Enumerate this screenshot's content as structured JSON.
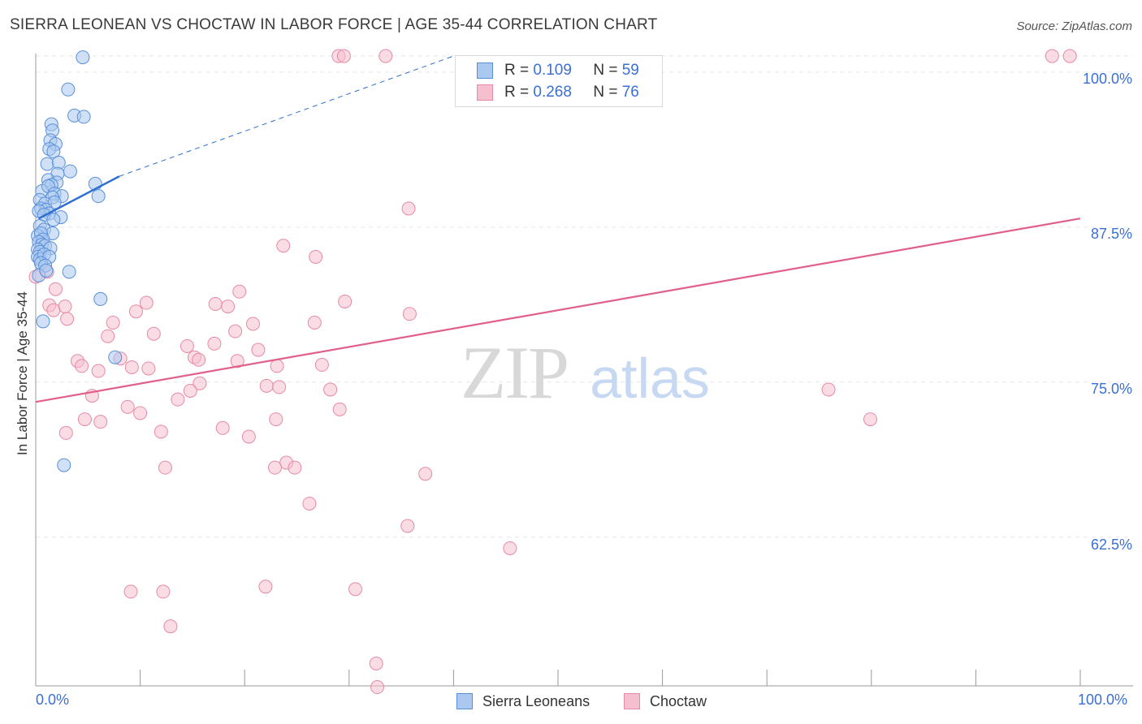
{
  "title": "SIERRA LEONEAN VS CHOCTAW IN LABOR FORCE | AGE 35-44 CORRELATION CHART",
  "source": "Source: ZipAtlas.com",
  "watermark": {
    "zip": "ZIP",
    "atlas": "atlas"
  },
  "legend": {
    "r_label": "R =",
    "n_label": "N =",
    "series": [
      {
        "name": "Sierra Leoneans",
        "r": "0.109",
        "n": "59"
      },
      {
        "name": "Choctaw",
        "r": "0.268",
        "n": "76"
      }
    ]
  },
  "colors": {
    "blue_fill": "#aac8f0",
    "blue_stroke": "#5a8fd8",
    "blue_line": "#2f6fd0",
    "pink_fill": "#f6bfcf",
    "pink_stroke": "#e68aa6",
    "pink_line": "#e0608a",
    "tick_label": "#3b6fd6",
    "grid": "#e6e6e6"
  },
  "chart_data": {
    "type": "scatter",
    "title": "SIERRA LEONEAN VS CHOCTAW IN LABOR FORCE | AGE 35-44 CORRELATION CHART",
    "xlabel": "",
    "ylabel": "In Labor Force | Age 35-44",
    "xlim": [
      0,
      100
    ],
    "ylim": [
      50.5,
      101.5
    ],
    "x_tick_labels": [
      "0.0%",
      "100.0%"
    ],
    "y_ticks": [
      62.5,
      75.0,
      87.5,
      100.0
    ],
    "y_tick_labels": [
      "62.5%",
      "75.0%",
      "87.5%",
      "100.0%"
    ],
    "grid": true,
    "series": [
      {
        "name": "Sierra Leoneans",
        "r": 0.109,
        "n": 59,
        "trend": {
          "x": [
            0.3,
            8.0
          ],
          "y": [
            88.2,
            91.6
          ],
          "dashed_to": [
            40.0,
            101.3
          ]
        },
        "points": [
          [
            4.5,
            101.2
          ],
          [
            3.1,
            98.6
          ],
          [
            3.7,
            96.5
          ],
          [
            4.6,
            96.4
          ],
          [
            1.5,
            95.8
          ],
          [
            1.6,
            95.3
          ],
          [
            1.4,
            94.5
          ],
          [
            1.9,
            94.2
          ],
          [
            1.3,
            93.8
          ],
          [
            1.7,
            93.6
          ],
          [
            1.1,
            92.6
          ],
          [
            2.2,
            92.7
          ],
          [
            2.1,
            91.8
          ],
          [
            3.3,
            92.0
          ],
          [
            1.2,
            91.3
          ],
          [
            2.0,
            91.1
          ],
          [
            1.5,
            90.9
          ],
          [
            5.7,
            91.0
          ],
          [
            0.6,
            90.4
          ],
          [
            1.2,
            90.8
          ],
          [
            1.8,
            90.2
          ],
          [
            2.5,
            90.0
          ],
          [
            6.0,
            90.0
          ],
          [
            0.4,
            89.7
          ],
          [
            1.6,
            89.9
          ],
          [
            0.9,
            89.4
          ],
          [
            1.8,
            89.5
          ],
          [
            0.5,
            89.0
          ],
          [
            1.0,
            88.9
          ],
          [
            1.3,
            88.6
          ],
          [
            0.3,
            88.8
          ],
          [
            0.8,
            88.5
          ],
          [
            2.4,
            88.3
          ],
          [
            1.7,
            88.1
          ],
          [
            0.4,
            87.6
          ],
          [
            0.8,
            87.3
          ],
          [
            1.6,
            87.0
          ],
          [
            0.2,
            86.8
          ],
          [
            0.5,
            87.0
          ],
          [
            0.7,
            86.5
          ],
          [
            0.3,
            86.3
          ],
          [
            0.6,
            86.1
          ],
          [
            0.9,
            86.0
          ],
          [
            0.2,
            85.7
          ],
          [
            0.4,
            85.5
          ],
          [
            1.4,
            85.8
          ],
          [
            0.2,
            85.1
          ],
          [
            0.4,
            84.9
          ],
          [
            0.8,
            85.3
          ],
          [
            1.3,
            85.1
          ],
          [
            0.5,
            84.6
          ],
          [
            0.9,
            84.4
          ],
          [
            3.2,
            83.9
          ],
          [
            0.3,
            83.6
          ],
          [
            6.2,
            81.7
          ],
          [
            0.7,
            79.9
          ],
          [
            7.6,
            77.0
          ],
          [
            2.7,
            68.3
          ],
          [
            1.0,
            84.0
          ]
        ]
      },
      {
        "name": "Choctaw",
        "r": 0.268,
        "n": 76,
        "trend": {
          "x": [
            0.0,
            100.0
          ],
          "y": [
            73.4,
            88.2
          ]
        },
        "points": [
          [
            29.0,
            101.3
          ],
          [
            29.5,
            101.3
          ],
          [
            33.5,
            101.3
          ],
          [
            97.3,
            101.3
          ],
          [
            99.0,
            101.3
          ],
          [
            35.7,
            89.0
          ],
          [
            23.7,
            86.0
          ],
          [
            26.8,
            85.1
          ],
          [
            1.1,
            83.9
          ],
          [
            1.9,
            82.5
          ],
          [
            19.5,
            82.3
          ],
          [
            29.6,
            81.5
          ],
          [
            1.3,
            81.2
          ],
          [
            2.8,
            81.1
          ],
          [
            10.6,
            81.4
          ],
          [
            17.2,
            81.3
          ],
          [
            18.4,
            81.1
          ],
          [
            1.7,
            80.8
          ],
          [
            9.6,
            80.7
          ],
          [
            3.0,
            80.1
          ],
          [
            7.4,
            79.8
          ],
          [
            20.8,
            79.7
          ],
          [
            26.7,
            79.8
          ],
          [
            35.8,
            80.5
          ],
          [
            19.1,
            79.1
          ],
          [
            11.3,
            78.9
          ],
          [
            6.9,
            78.7
          ],
          [
            17.1,
            78.1
          ],
          [
            14.5,
            77.9
          ],
          [
            21.3,
            77.6
          ],
          [
            15.2,
            77.0
          ],
          [
            8.1,
            76.9
          ],
          [
            4.0,
            76.7
          ],
          [
            15.6,
            76.8
          ],
          [
            19.3,
            76.7
          ],
          [
            23.1,
            76.3
          ],
          [
            27.4,
            76.4
          ],
          [
            4.4,
            76.3
          ],
          [
            9.2,
            76.2
          ],
          [
            10.8,
            76.1
          ],
          [
            6.0,
            75.9
          ],
          [
            15.7,
            74.9
          ],
          [
            22.1,
            74.7
          ],
          [
            23.3,
            74.6
          ],
          [
            28.2,
            74.4
          ],
          [
            75.9,
            74.4
          ],
          [
            14.8,
            74.3
          ],
          [
            5.4,
            73.9
          ],
          [
            13.6,
            73.6
          ],
          [
            8.8,
            73.0
          ],
          [
            29.1,
            72.8
          ],
          [
            10.0,
            72.5
          ],
          [
            23.0,
            72.0
          ],
          [
            4.7,
            72.0
          ],
          [
            6.2,
            71.8
          ],
          [
            79.9,
            72.0
          ],
          [
            17.9,
            71.3
          ],
          [
            12.0,
            71.0
          ],
          [
            2.9,
            70.9
          ],
          [
            20.4,
            70.6
          ],
          [
            24.0,
            68.5
          ],
          [
            24.8,
            68.1
          ],
          [
            12.4,
            68.1
          ],
          [
            22.9,
            68.1
          ],
          [
            37.3,
            67.6
          ],
          [
            26.2,
            65.2
          ],
          [
            35.6,
            63.4
          ],
          [
            45.4,
            61.6
          ],
          [
            22.0,
            58.5
          ],
          [
            9.1,
            58.1
          ],
          [
            12.2,
            58.1
          ],
          [
            30.6,
            58.3
          ],
          [
            12.9,
            55.3
          ],
          [
            32.6,
            52.3
          ],
          [
            32.7,
            50.4
          ],
          [
            0.0,
            83.5
          ]
        ]
      }
    ]
  }
}
